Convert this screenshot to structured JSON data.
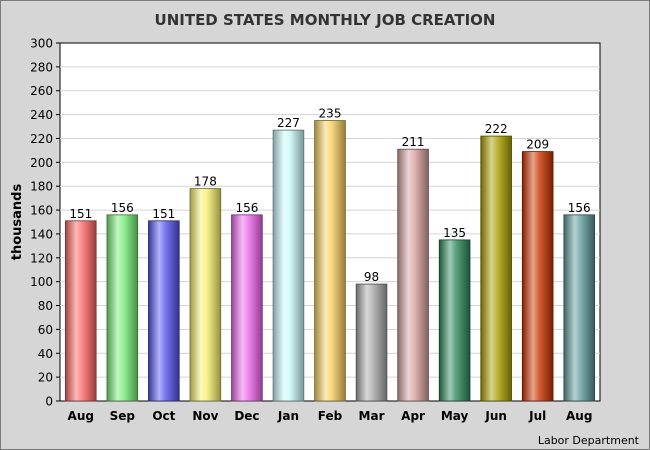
{
  "chart_data": {
    "type": "bar",
    "title": "UNITED STATES MONTHLY JOB CREATION",
    "ylabel": "thousands",
    "xlabel": "",
    "source": "Labor Department",
    "categories": [
      "Aug",
      "Sep",
      "Oct",
      "Nov",
      "Dec",
      "Jan",
      "Feb",
      "Mar",
      "Apr",
      "May",
      "Jun",
      "Jul",
      "Aug"
    ],
    "values": [
      151,
      156,
      151,
      178,
      156,
      227,
      235,
      98,
      211,
      135,
      222,
      209,
      156
    ],
    "colors": [
      "#ff6666",
      "#77ee77",
      "#5555ee",
      "#f8f070",
      "#ee66ee",
      "#c8f8f8",
      "#f8d060",
      "#a8a8a8",
      "#d8a0a0",
      "#2e8a5e",
      "#a8a000",
      "#cc3300",
      "#5e9a9a"
    ],
    "ylim": [
      0,
      300
    ],
    "yticks": [
      0,
      20,
      40,
      60,
      80,
      100,
      120,
      140,
      160,
      180,
      200,
      220,
      240,
      260,
      280,
      300
    ],
    "grid": true,
    "data_labels": true
  }
}
